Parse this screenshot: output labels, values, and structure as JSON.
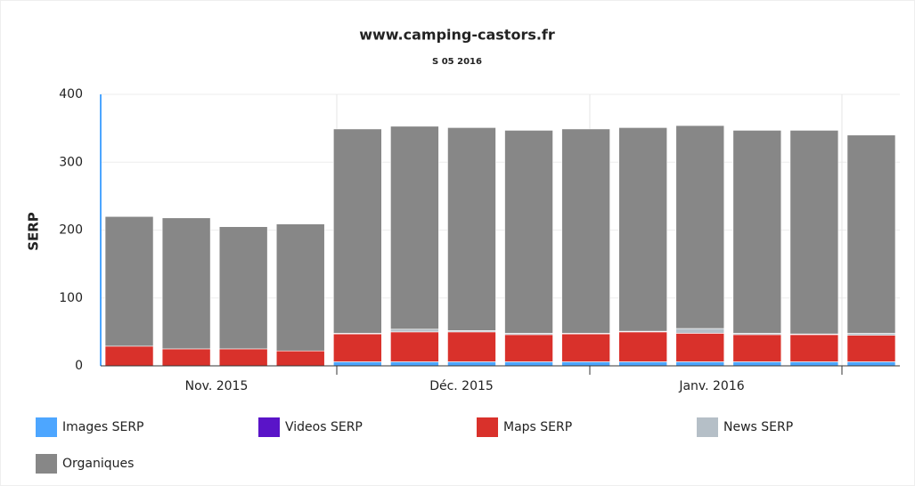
{
  "chart_data": {
    "type": "stacked_bar",
    "title": "www.camping-castors.fr",
    "subtitle": "S 05 2016",
    "y_label": "SERP",
    "categories": [
      null,
      null,
      null,
      null,
      null,
      null,
      null,
      null,
      null,
      null,
      null,
      null,
      null,
      null
    ],
    "x_axis_labels": [
      "Nov. 2015",
      "Déc. 2015",
      "Janv. 2016"
    ],
    "series": [
      {
        "name": "Images SERP",
        "color": "#4da6ff",
        "values": [
          0,
          0,
          0,
          0,
          6,
          6,
          6,
          6,
          6,
          6,
          6,
          6,
          6,
          6
        ]
      },
      {
        "name": "Videos SERP",
        "color": "#5a14c8",
        "values": [
          0,
          0,
          0,
          0,
          0,
          0,
          0,
          0,
          0,
          0,
          0,
          0,
          0,
          0
        ]
      },
      {
        "name": "Maps SERP",
        "color": "#d9312b",
        "values": [
          29,
          25,
          25,
          22,
          41,
          44,
          44,
          40,
          41,
          44,
          42,
          40,
          40,
          39
        ]
      },
      {
        "name": "News SERP",
        "color": "#b5bfc7",
        "values": [
          0,
          0,
          0,
          0,
          1,
          4,
          2,
          2,
          1,
          1,
          7,
          2,
          1,
          3
        ]
      },
      {
        "name": "Organiques",
        "color": "#878787",
        "values": [
          191,
          193,
          180,
          187,
          301,
          299,
          299,
          299,
          301,
          300,
          299,
          299,
          300,
          292
        ]
      }
    ],
    "ylim": [
      0,
      400
    ],
    "yticks": [
      0,
      100,
      200,
      300,
      400
    ],
    "grid": true
  }
}
